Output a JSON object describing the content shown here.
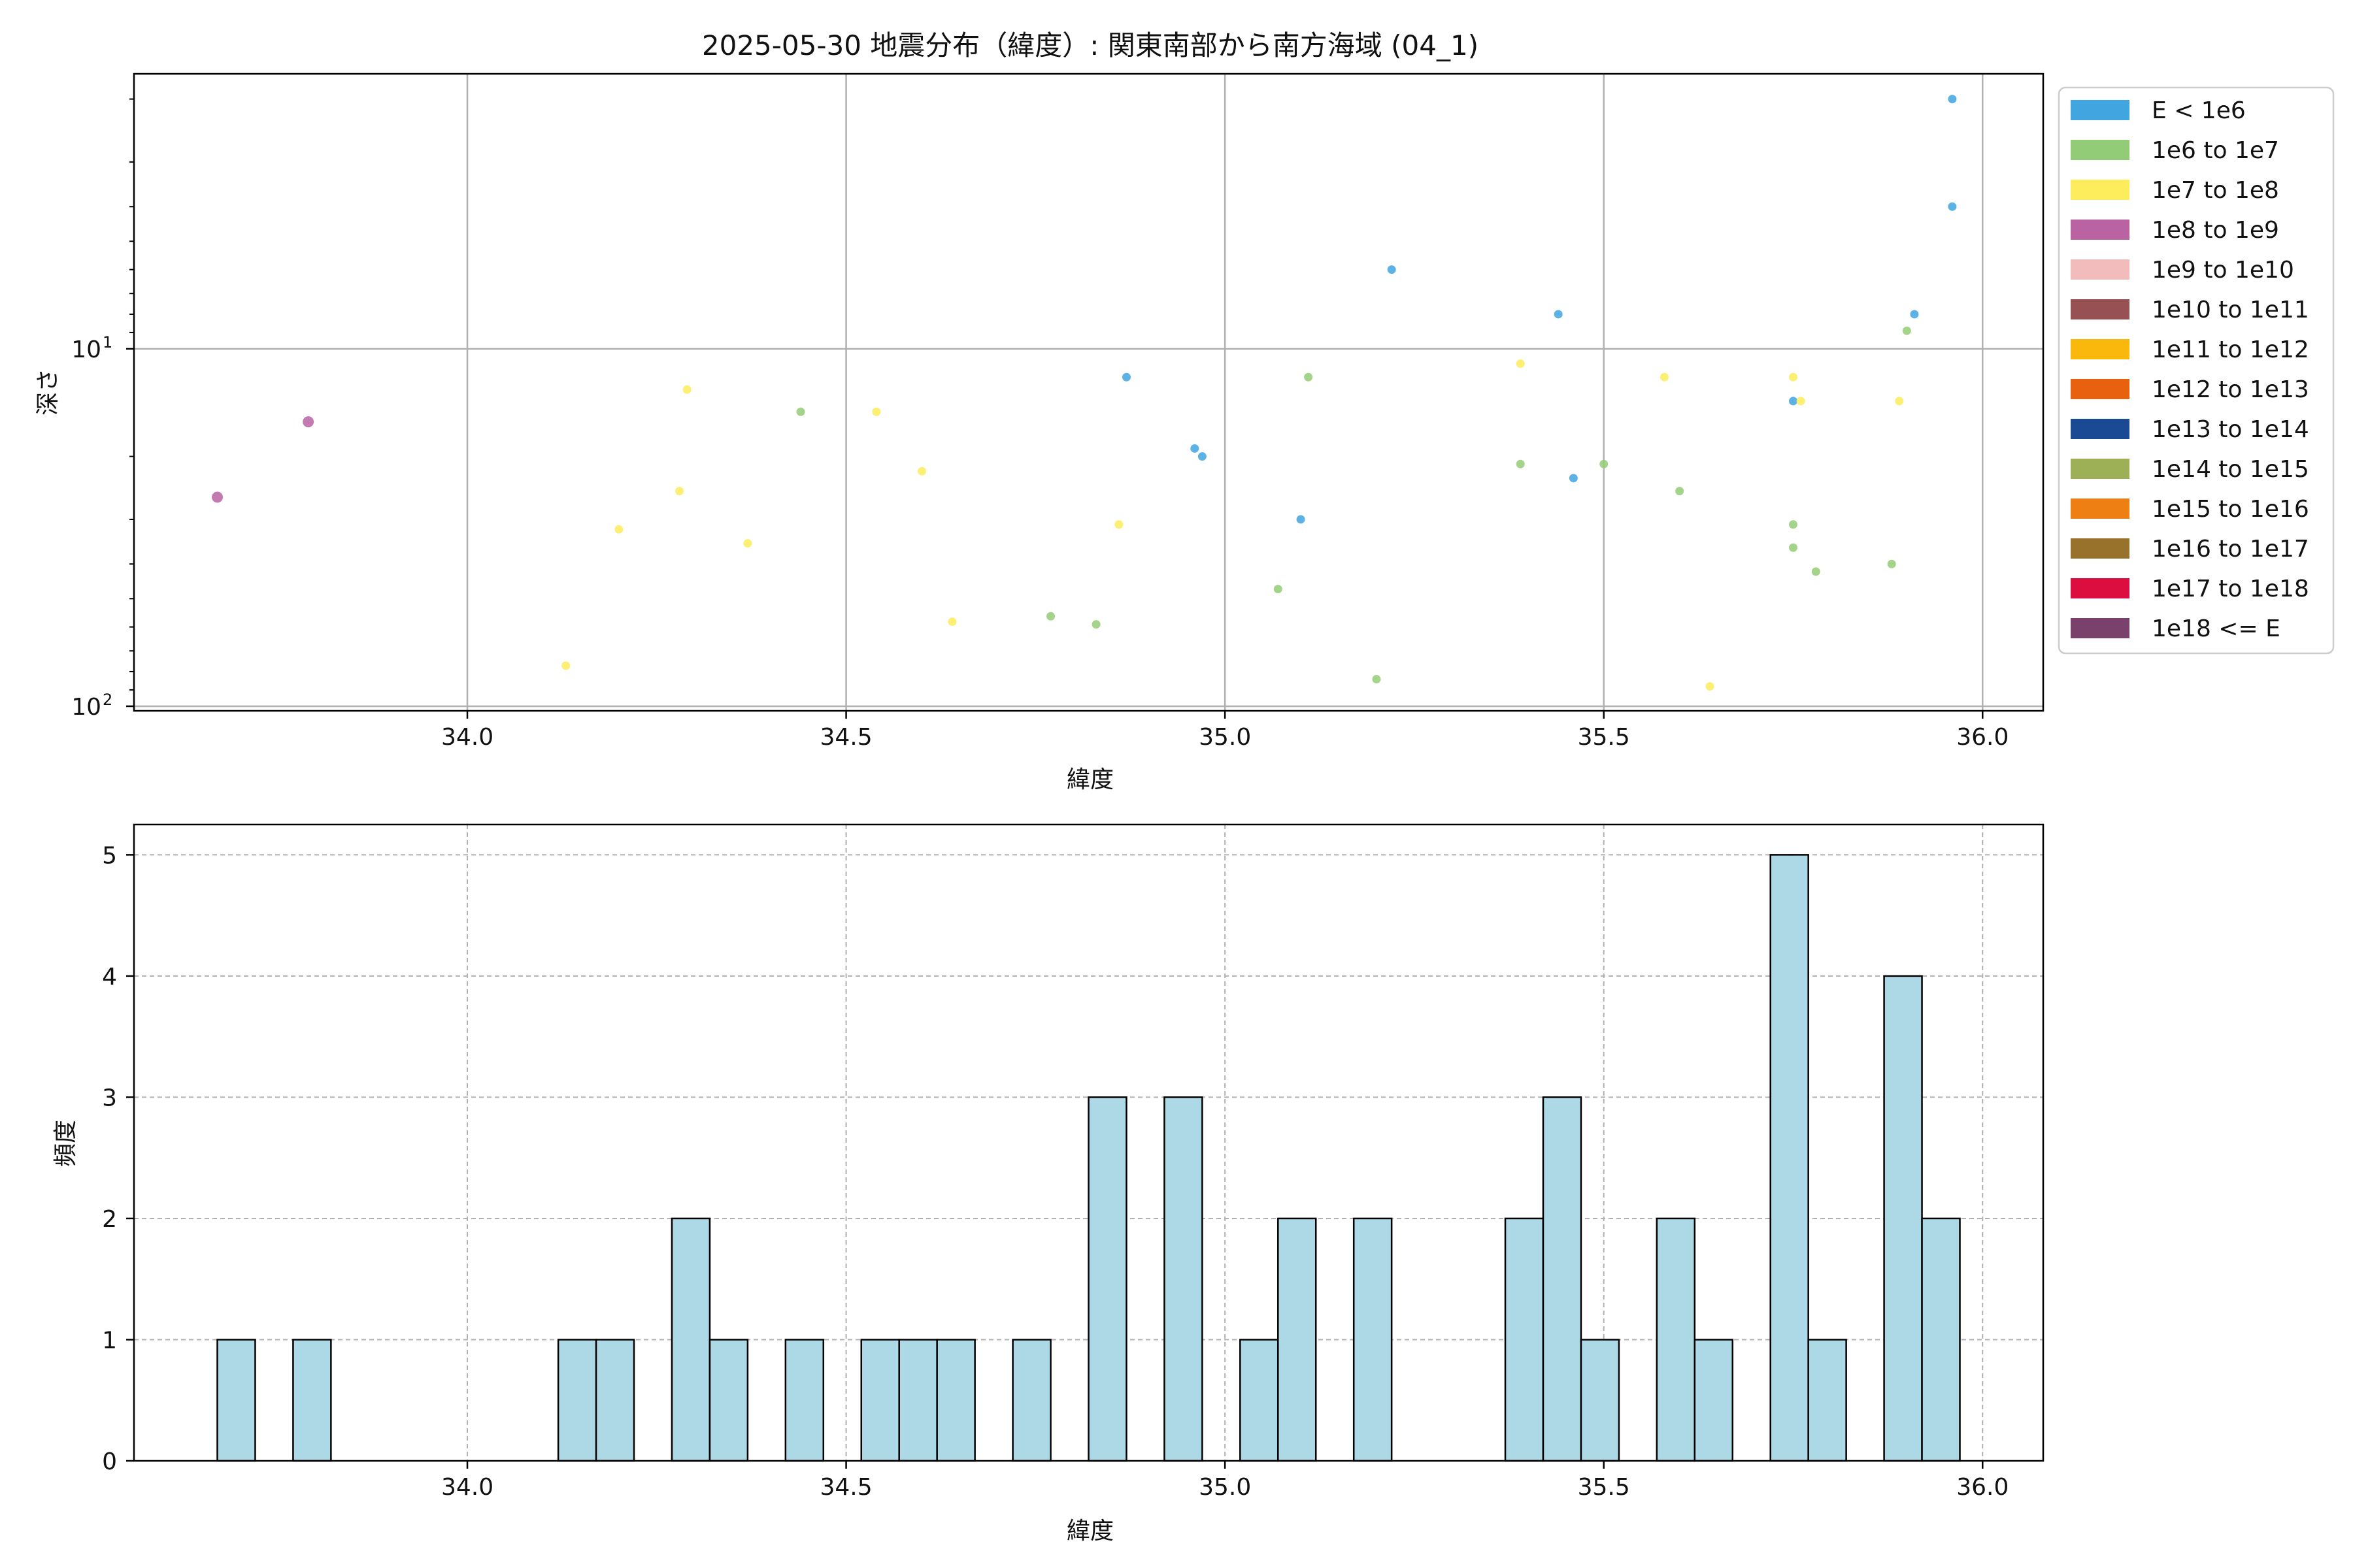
{
  "figure": {
    "title": "2025-05-30 地震分布（緯度）: 関東南部から南方海域 (04_1)"
  },
  "chart_data": [
    {
      "type": "scatter",
      "title": "2025-05-30 地震分布（緯度）: 関東南部から南方海域 (04_1)",
      "xlabel": "緯度",
      "ylabel": "深さ",
      "xlim": [
        33.56,
        36.08
      ],
      "xticks": [
        34.0,
        34.5,
        35.0,
        35.5,
        36.0
      ],
      "xtick_labels": [
        "34.0",
        "34.5",
        "35.0",
        "35.5",
        "36.0"
      ],
      "y_scale": "log",
      "y_inverted": true,
      "ylim": [
        1.7,
        103
      ],
      "ytick_labels": [
        {
          "base": "10",
          "exp": "1",
          "value": 10
        },
        {
          "base": "10",
          "exp": "2",
          "value": 100
        }
      ],
      "grid": true,
      "legend_position": "outside-right",
      "legend": [
        {
          "label": "E < 1e6",
          "color": "#41a5e0"
        },
        {
          "label": "1e6 to 1e7",
          "color": "#93cc76"
        },
        {
          "label": "1e7 to 1e8",
          "color": "#fdec5c"
        },
        {
          "label": "1e8 to 1e9",
          "color": "#b963a3"
        },
        {
          "label": "1e9 to 1e10",
          "color": "#f3bcbc"
        },
        {
          "label": "1e10 to 1e11",
          "color": "#975153"
        },
        {
          "label": "1e11 to 1e12",
          "color": "#fab80c"
        },
        {
          "label": "1e12 to 1e13",
          "color": "#e8610e"
        },
        {
          "label": "1e13 to 1e14",
          "color": "#1b4a94"
        },
        {
          "label": "1e14 to 1e15",
          "color": "#9db056"
        },
        {
          "label": "1e15 to 1e16",
          "color": "#ee7f13"
        },
        {
          "label": "1e16 to 1e17",
          "color": "#98722a"
        },
        {
          "label": "1e17 to 1e18",
          "color": "#dc0e3f"
        },
        {
          "label": "1e18 <= E",
          "color": "#7a416d"
        }
      ],
      "points": [
        {
          "x": 33.67,
          "y": 26,
          "class": "1e8 to 1e9"
        },
        {
          "x": 33.79,
          "y": 16,
          "class": "1e8 to 1e9"
        },
        {
          "x": 34.13,
          "y": 77,
          "class": "1e7 to 1e8"
        },
        {
          "x": 34.2,
          "y": 32,
          "class": "1e7 to 1e8"
        },
        {
          "x": 34.28,
          "y": 25,
          "class": "1e7 to 1e8"
        },
        {
          "x": 34.29,
          "y": 13,
          "class": "1e7 to 1e8"
        },
        {
          "x": 34.37,
          "y": 35,
          "class": "1e7 to 1e8"
        },
        {
          "x": 34.44,
          "y": 15,
          "class": "1e6 to 1e7"
        },
        {
          "x": 34.54,
          "y": 15,
          "class": "1e7 to 1e8"
        },
        {
          "x": 34.6,
          "y": 22,
          "class": "1e7 to 1e8"
        },
        {
          "x": 34.64,
          "y": 58,
          "class": "1e7 to 1e8"
        },
        {
          "x": 34.77,
          "y": 56,
          "class": "1e6 to 1e7"
        },
        {
          "x": 34.83,
          "y": 59,
          "class": "1e6 to 1e7"
        },
        {
          "x": 34.86,
          "y": 31,
          "class": "1e7 to 1e8"
        },
        {
          "x": 34.87,
          "y": 12,
          "class": "E < 1e6"
        },
        {
          "x": 34.96,
          "y": 19,
          "class": "E < 1e6"
        },
        {
          "x": 34.97,
          "y": 20,
          "class": "E < 1e6"
        },
        {
          "x": 35.07,
          "y": 47,
          "class": "1e6 to 1e7"
        },
        {
          "x": 35.1,
          "y": 30,
          "class": "E < 1e6"
        },
        {
          "x": 35.11,
          "y": 12,
          "class": "1e6 to 1e7"
        },
        {
          "x": 35.2,
          "y": 84,
          "class": "1e6 to 1e7"
        },
        {
          "x": 35.22,
          "y": 6.0,
          "class": "E < 1e6"
        },
        {
          "x": 35.39,
          "y": 11,
          "class": "1e7 to 1e8"
        },
        {
          "x": 35.39,
          "y": 21,
          "class": "1e6 to 1e7"
        },
        {
          "x": 35.44,
          "y": 8.0,
          "class": "E < 1e6"
        },
        {
          "x": 35.46,
          "y": 23,
          "class": "E < 1e6"
        },
        {
          "x": 35.5,
          "y": 21,
          "class": "1e6 to 1e7"
        },
        {
          "x": 35.58,
          "y": 12,
          "class": "1e7 to 1e8"
        },
        {
          "x": 35.6,
          "y": 25,
          "class": "1e6 to 1e7"
        },
        {
          "x": 35.64,
          "y": 88,
          "class": "1e7 to 1e8"
        },
        {
          "x": 35.75,
          "y": 12,
          "class": "1e7 to 1e8"
        },
        {
          "x": 35.75,
          "y": 14,
          "class": "E < 1e6"
        },
        {
          "x": 35.75,
          "y": 31,
          "class": "1e6 to 1e7"
        },
        {
          "x": 35.75,
          "y": 36,
          "class": "1e6 to 1e7"
        },
        {
          "x": 35.76,
          "y": 14,
          "class": "1e7 to 1e8"
        },
        {
          "x": 35.78,
          "y": 42,
          "class": "1e6 to 1e7"
        },
        {
          "x": 35.88,
          "y": 40,
          "class": "1e6 to 1e7"
        },
        {
          "x": 35.89,
          "y": 14,
          "class": "1e7 to 1e8"
        },
        {
          "x": 35.9,
          "y": 8.9,
          "class": "1e6 to 1e7"
        },
        {
          "x": 35.91,
          "y": 8.0,
          "class": "E < 1e6"
        },
        {
          "x": 35.96,
          "y": 2.0,
          "class": "E < 1e6"
        },
        {
          "x": 35.96,
          "y": 4.0,
          "class": "E < 1e6"
        }
      ]
    },
    {
      "type": "bar",
      "title": "",
      "xlabel": "緯度",
      "ylabel": "頻度",
      "xlim": [
        33.56,
        36.08
      ],
      "xticks": [
        34.0,
        34.5,
        35.0,
        35.5,
        36.0
      ],
      "xtick_labels": [
        "34.0",
        "34.5",
        "35.0",
        "35.5",
        "36.0"
      ],
      "ylim": [
        0,
        5.25
      ],
      "yticks": [
        0,
        1,
        2,
        3,
        4,
        5
      ],
      "ytick_labels": [
        "0",
        "1",
        "2",
        "3",
        "4",
        "5"
      ],
      "grid": true,
      "bar_color": "#add8e6",
      "bin_width": 0.05,
      "bins": [
        {
          "x0": 33.67,
          "count": 1
        },
        {
          "x0": 33.77,
          "count": 1
        },
        {
          "x0": 34.12,
          "count": 1
        },
        {
          "x0": 34.17,
          "count": 1
        },
        {
          "x0": 34.27,
          "count": 2
        },
        {
          "x0": 34.32,
          "count": 1
        },
        {
          "x0": 34.42,
          "count": 1
        },
        {
          "x0": 34.52,
          "count": 1
        },
        {
          "x0": 34.57,
          "count": 1
        },
        {
          "x0": 34.62,
          "count": 1
        },
        {
          "x0": 34.72,
          "count": 1
        },
        {
          "x0": 34.82,
          "count": 3
        },
        {
          "x0": 34.92,
          "count": 3
        },
        {
          "x0": 35.02,
          "count": 1
        },
        {
          "x0": 35.07,
          "count": 2
        },
        {
          "x0": 35.17,
          "count": 2
        },
        {
          "x0": 35.37,
          "count": 2
        },
        {
          "x0": 35.42,
          "count": 3
        },
        {
          "x0": 35.47,
          "count": 1
        },
        {
          "x0": 35.57,
          "count": 2
        },
        {
          "x0": 35.62,
          "count": 1
        },
        {
          "x0": 35.72,
          "count": 5
        },
        {
          "x0": 35.77,
          "count": 1
        },
        {
          "x0": 35.87,
          "count": 4
        },
        {
          "x0": 35.92,
          "count": 2
        }
      ]
    }
  ]
}
